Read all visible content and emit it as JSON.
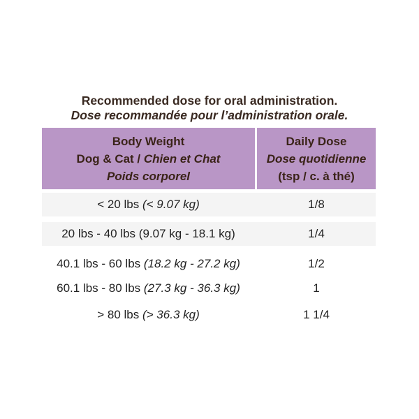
{
  "title": {
    "en": "Recommended dose for oral administration.",
    "fr": "Dose recommandée pour l’administration orale."
  },
  "table": {
    "header": {
      "weight": {
        "en": "Body Weight",
        "species_en": "Dog & Cat /",
        "species_fr": "Chien et Chat",
        "fr": "Poids corporel"
      },
      "dose": {
        "en": "Daily Dose",
        "fr": "Dose quotidienne",
        "unit": "(tsp / c. à thé)"
      }
    },
    "rows": [
      {
        "lbs": "< 20 lbs",
        "kg": "(< 9.07 kg)",
        "kg_italic": true,
        "dose": "1/8"
      },
      {
        "lbs": "20 lbs - 40 lbs",
        "kg": "(9.07 kg - 18.1 kg)",
        "kg_italic": false,
        "dose": "1/4"
      },
      {
        "lbs": "40.1 lbs - 60 lbs",
        "kg": "(18.2 kg - 27.2 kg)",
        "kg_italic": true,
        "dose": "1/2"
      },
      {
        "lbs": "60.1 lbs - 80 lbs",
        "kg": "(27.3 kg - 36.3 kg)",
        "kg_italic": true,
        "dose": "1"
      },
      {
        "lbs": "> 80 lbs",
        "kg": "(> 36.3 kg)",
        "kg_italic": true,
        "dose": "1 1/4"
      }
    ]
  }
}
